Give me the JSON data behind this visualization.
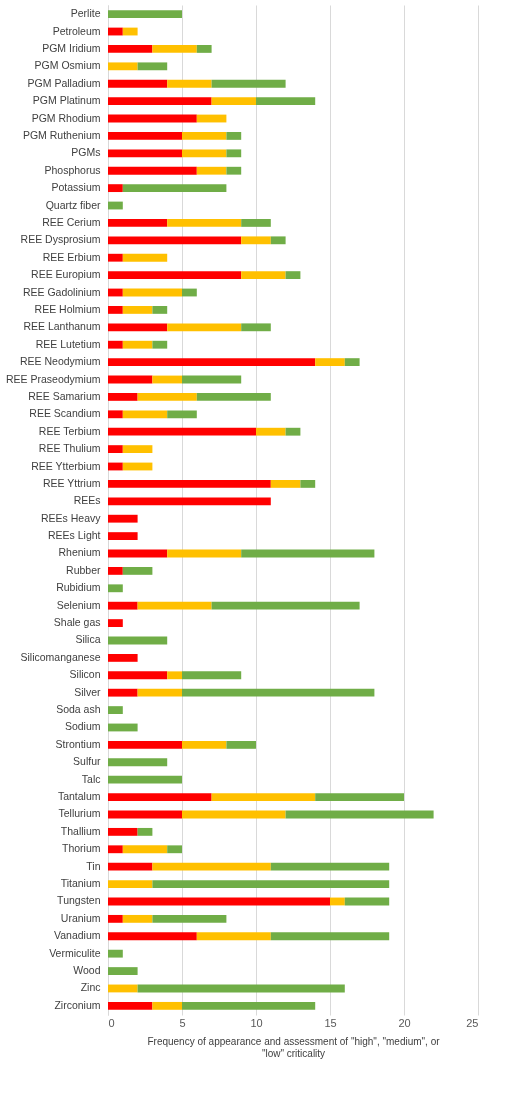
{
  "chart_data": {
    "type": "bar",
    "orientation": "horizontal",
    "stacked": true,
    "xlabel": "Frequency of appearance and assessment of \"high\", \"medium\", or \"low\" criticality",
    "categories": [
      "Perlite",
      "Petroleum",
      "PGM Iridium",
      "PGM Osmium",
      "PGM Palladium",
      "PGM Platinum",
      "PGM Rhodium",
      "PGM Ruthenium",
      "PGMs",
      "Phosphorus",
      "Potassium",
      "Quartz fiber",
      "REE Cerium",
      "REE Dysprosium",
      "REE Erbium",
      "REE Europium",
      "REE Gadolinium",
      "REE Holmium",
      "REE Lanthanum",
      "REE Lutetium",
      "REE Neodymium",
      "REE Praseodymium",
      "REE Samarium",
      "REE Scandium",
      "REE Terbium",
      "REE Thulium",
      "REE Ytterbium",
      "REE Yttrium",
      "REEs",
      "REEs Heavy",
      "REEs Light",
      "Rhenium",
      "Rubber",
      "Rubidium",
      "Selenium",
      "Shale gas",
      "Silica",
      "Silicomanganese",
      "Silicon",
      "Silver",
      "Soda ash",
      "Sodium",
      "Strontium",
      "Sulfur",
      "Talc",
      "Tantalum",
      "Tellurium",
      "Thallium",
      "Thorium",
      "Tin",
      "Titanium",
      "Tungsten",
      "Uranium",
      "Vanadium",
      "Vermiculite",
      "Wood",
      "Zinc",
      "Zirconium"
    ],
    "series": [
      {
        "color": "#ff0000",
        "values": [
          0,
          1,
          3,
          0,
          4,
          7,
          6,
          5,
          5,
          6,
          1,
          0,
          4,
          9,
          1,
          9,
          1,
          1,
          4,
          1,
          14,
          3,
          2,
          1,
          10,
          1,
          1,
          11,
          11,
          2,
          2,
          4,
          1,
          0,
          2,
          1,
          0,
          2,
          4,
          2,
          0,
          0,
          5,
          0,
          0,
          7,
          5,
          2,
          1,
          3,
          0,
          15,
          1,
          6,
          0,
          0,
          0,
          3
        ]
      },
      {
        "color": "#ffc000",
        "values": [
          0,
          1,
          3,
          2,
          3,
          3,
          2,
          3,
          3,
          2,
          0,
          0,
          5,
          2,
          3,
          3,
          4,
          2,
          5,
          2,
          2,
          2,
          4,
          3,
          2,
          2,
          2,
          2,
          0,
          0,
          0,
          5,
          0,
          0,
          5,
          0,
          0,
          0,
          1,
          3,
          0,
          0,
          3,
          0,
          0,
          7,
          7,
          0,
          3,
          8,
          3,
          1,
          2,
          5,
          0,
          0,
          2,
          2
        ]
      },
      {
        "color": "#70ad47",
        "values": [
          5,
          0,
          1,
          2,
          5,
          4,
          0,
          1,
          1,
          1,
          7,
          1,
          2,
          1,
          0,
          1,
          1,
          1,
          2,
          1,
          1,
          4,
          5,
          2,
          1,
          0,
          0,
          1,
          0,
          0,
          0,
          9,
          2,
          1,
          10,
          0,
          4,
          0,
          4,
          13,
          1,
          2,
          2,
          4,
          5,
          6,
          10,
          1,
          1,
          8,
          16,
          3,
          5,
          8,
          1,
          2,
          14,
          9
        ]
      }
    ],
    "xlim": [
      0,
      25
    ],
    "xticks": [
      0,
      5,
      10,
      15,
      20,
      25
    ],
    "grid": "x",
    "legend": false
  }
}
